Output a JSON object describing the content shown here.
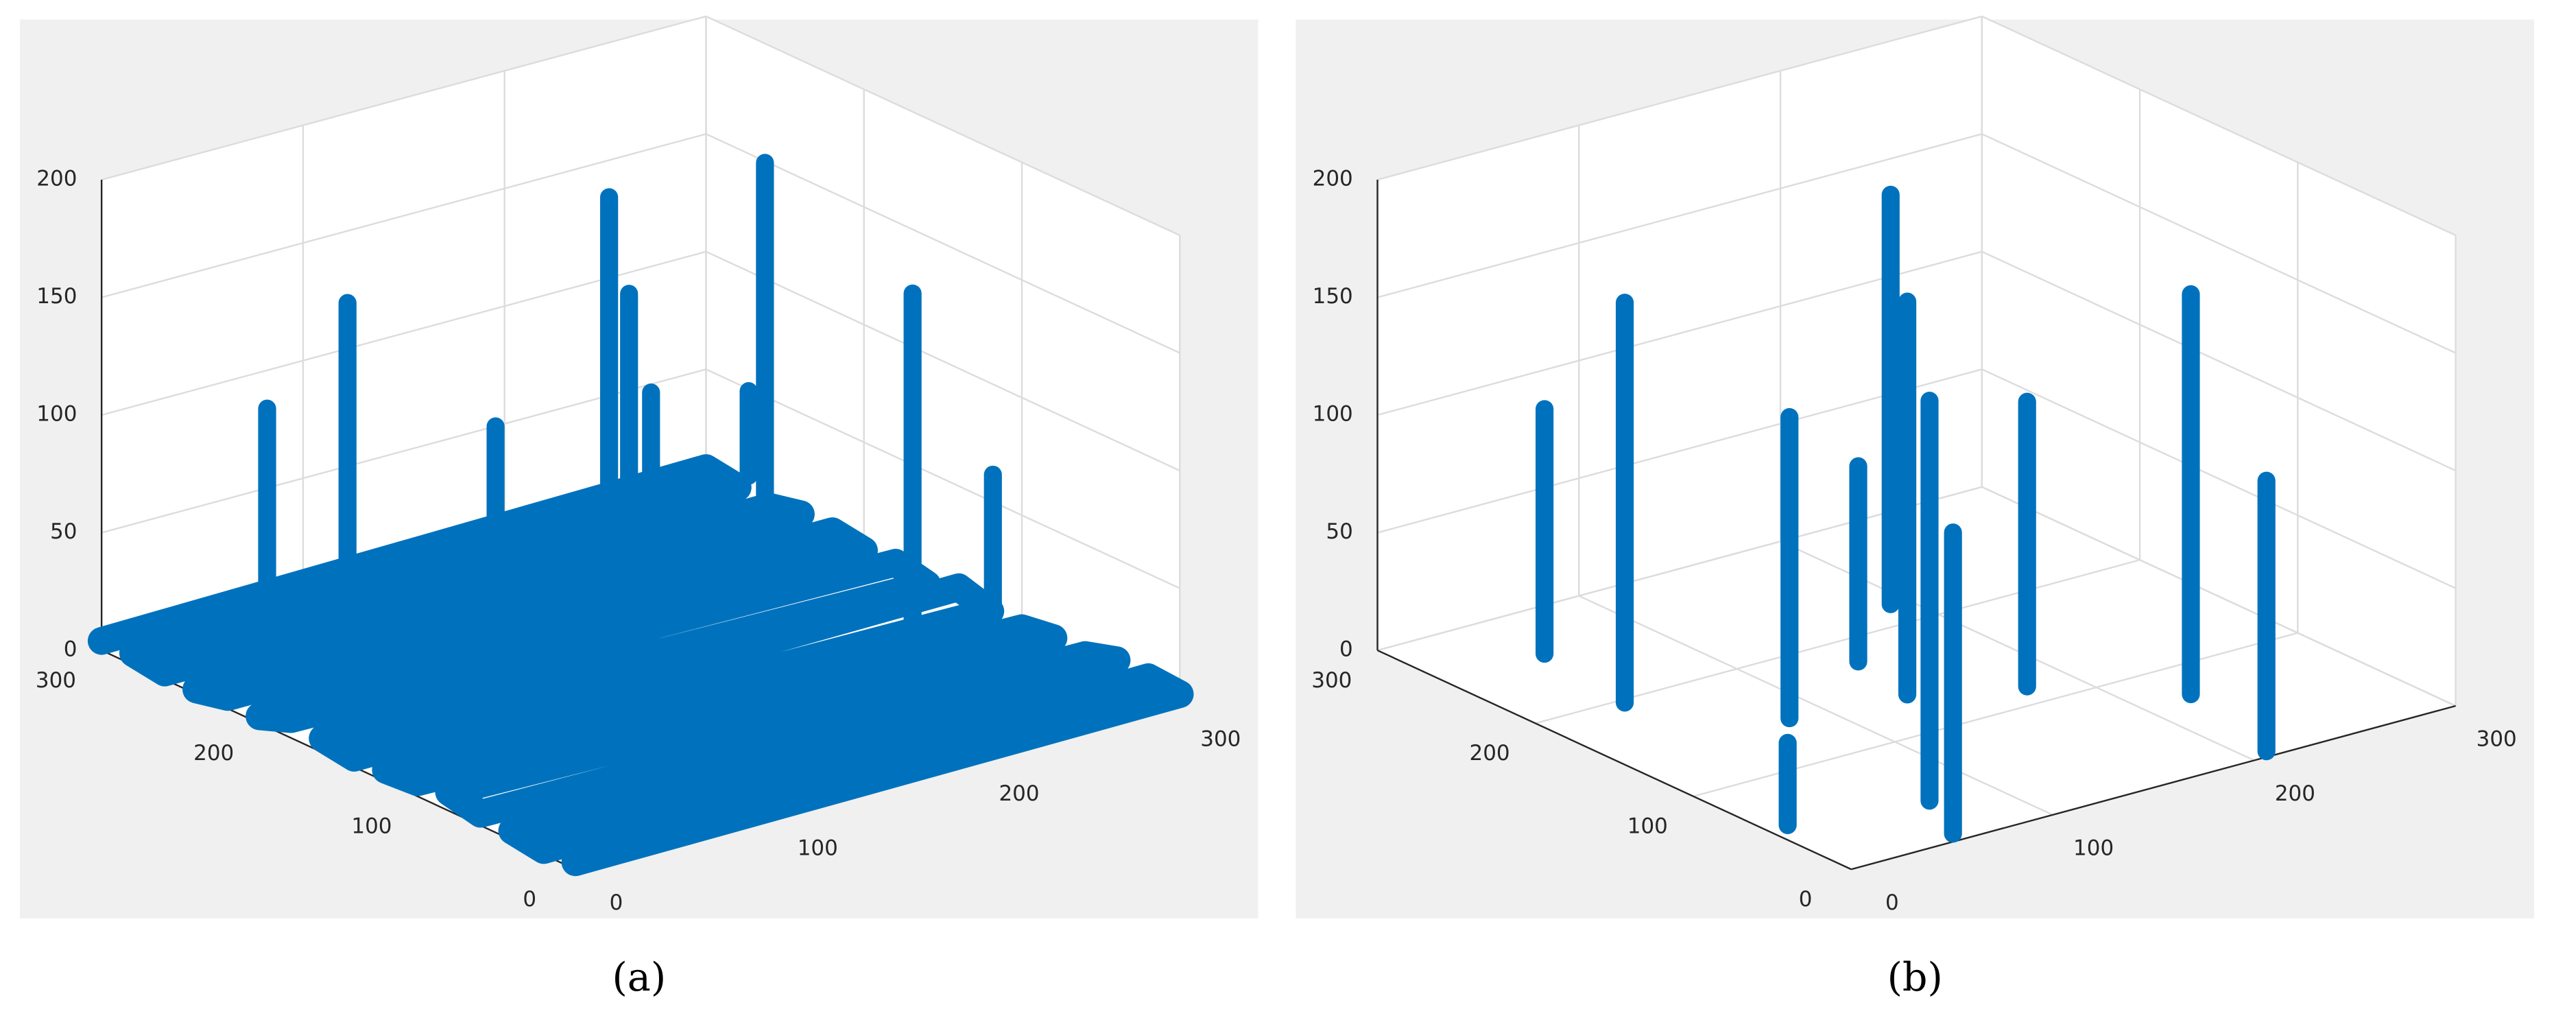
{
  "chart_data": [
    {
      "type": "scatter3d",
      "caption": "(a)",
      "color": "#0072bd",
      "grid": true,
      "xlim": [
        0,
        300
      ],
      "ylim": [
        0,
        300
      ],
      "zlim": [
        0,
        200
      ],
      "xticks": [
        0,
        100,
        200,
        300
      ],
      "yticks": [
        0,
        100,
        200,
        300
      ],
      "zticks": [
        0,
        50,
        100,
        150,
        200
      ],
      "series": [
        {
          "x": [
            0,
            300,
            300,
            0,
            0,
            300,
            300,
            0,
            0,
            300,
            300,
            0,
            0,
            300,
            300,
            0,
            0,
            300,
            300,
            0,
            0,
            300,
            300,
            0,
            0,
            300,
            300,
            0,
            0,
            300,
            300,
            0
          ],
          "y": [
            0,
            0,
            20,
            20,
            40,
            40,
            60,
            60,
            80,
            80,
            100,
            100,
            120,
            120,
            140,
            140,
            160,
            160,
            180,
            180,
            200,
            200,
            220,
            220,
            240,
            240,
            260,
            260,
            280,
            280,
            300,
            300
          ],
          "z": [
            3,
            5,
            6,
            2,
            4,
            7,
            3,
            5,
            8,
            4,
            2,
            6,
            5,
            3,
            7,
            4,
            6,
            2,
            5,
            8,
            3,
            4,
            6,
            5,
            2,
            7,
            4,
            3,
            5,
            6,
            8,
            4
          ]
        },
        {
          "x": [
            61,
            61
          ],
          "y": [
            273,
            273
          ],
          "z": [
            0,
            97
          ]
        },
        {
          "x": [
            86,
            86
          ],
          "y": [
            254,
            254
          ],
          "z": [
            0,
            142
          ]
        },
        {
          "x": [
            154,
            154
          ],
          "y": [
            247,
            247
          ],
          "z": [
            0,
            76
          ]
        },
        {
          "x": [
            179,
            179
          ],
          "y": [
            207,
            207
          ],
          "z": [
            0,
            180
          ]
        },
        {
          "x": [
            174,
            174
          ],
          "y": [
            188,
            188
          ],
          "z": [
            0,
            146
          ]
        },
        {
          "x": [
            181,
            181
          ],
          "y": [
            183,
            183
          ],
          "z": [
            0,
            104
          ]
        },
        {
          "x": [
            283,
            283
          ],
          "y": [
            241,
            241
          ],
          "z": [
            0,
            160
          ]
        },
        {
          "x": [
            289,
            289
          ],
          "y": [
            259,
            259
          ],
          "z": [
            20,
            56
          ]
        },
        {
          "x": [
            263,
            263
          ],
          "y": [
            122,
            122
          ],
          "z": [
            0,
            146
          ]
        },
        {
          "x": [
            277,
            277
          ],
          "y": [
            89,
            89
          ],
          "z": [
            0,
            76
          ]
        }
      ]
    },
    {
      "type": "scatter3d",
      "caption": "(b)",
      "color": "#0072bd",
      "grid": true,
      "xlim": [
        0,
        300
      ],
      "ylim": [
        0,
        300
      ],
      "zlim": [
        0,
        200
      ],
      "xticks": [
        0,
        100,
        200,
        300
      ],
      "yticks": [
        0,
        100,
        200,
        300
      ],
      "zticks": [
        0,
        50,
        100,
        150,
        200
      ],
      "series": [
        {
          "x": [
            50,
            50
          ],
          "y": [
            258,
            258
          ],
          "z": [
            0,
            104
          ]
        },
        {
          "x": [
            42,
            42
          ],
          "y": [
            197,
            197
          ],
          "z": [
            0,
            170
          ]
        },
        {
          "x": [
            83,
            83
          ],
          "y": [
            145,
            145
          ],
          "z": [
            0,
            128
          ]
        },
        {
          "x": [
            10,
            10
          ],
          "y": [
            53,
            53
          ],
          "z": [
            0,
            35
          ]
        },
        {
          "x": [
            143,
            143
          ],
          "y": [
            178,
            178
          ],
          "z": [
            0,
            83
          ]
        },
        {
          "x": [
            192,
            192
          ],
          "y": [
            220,
            220
          ],
          "z": [
            0,
            174
          ]
        },
        {
          "x": [
            136,
            136
          ],
          "y": [
            138,
            138
          ],
          "z": [
            0,
            167
          ]
        },
        {
          "x": [
            71,
            71
          ],
          "y": [
            41,
            41
          ],
          "z": [
            0,
            170
          ]
        },
        {
          "x": [
            56,
            56
          ],
          "y": [
            7,
            7
          ],
          "z": [
            0,
            128
          ]
        },
        {
          "x": [
            179,
            179
          ],
          "y": [
            117,
            117
          ],
          "z": [
            0,
            121
          ]
        },
        {
          "x": [
            225,
            225
          ],
          "y": [
            72,
            72
          ],
          "z": [
            0,
            170
          ]
        },
        {
          "x": [
            210,
            210
          ],
          "y": [
            5,
            5
          ],
          "z": [
            0,
            115
          ]
        }
      ]
    }
  ]
}
